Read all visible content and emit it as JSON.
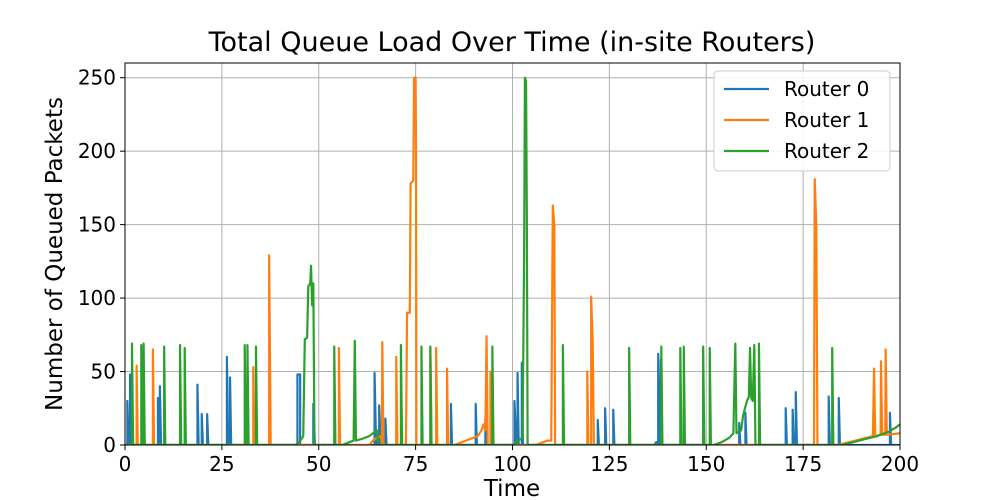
{
  "chart_data": {
    "type": "line",
    "title": "Total Queue Load Over Time (in-site Routers)",
    "xlabel": "Time",
    "ylabel": "Number of Queued Packets",
    "xlim": [
      0,
      200
    ],
    "ylim": [
      0,
      260
    ],
    "xticks": [
      0,
      25,
      50,
      75,
      100,
      125,
      150,
      175,
      200
    ],
    "yticks": [
      0,
      50,
      100,
      150,
      200,
      250
    ],
    "grid": true,
    "legend_position": "top-right",
    "series": [
      {
        "name": "Router 0",
        "color": "#1f77b4",
        "points": [
          [
            0,
            0
          ],
          [
            0.6,
            0
          ],
          [
            0.6,
            30
          ],
          [
            0.9,
            0
          ],
          [
            1.3,
            0
          ],
          [
            1.3,
            48
          ],
          [
            1.6,
            0
          ],
          [
            8.5,
            0
          ],
          [
            8.5,
            32
          ],
          [
            8.8,
            0
          ],
          [
            9,
            0
          ],
          [
            9,
            40
          ],
          [
            9.3,
            0
          ],
          [
            18.7,
            0
          ],
          [
            18.7,
            41
          ],
          [
            19,
            0
          ],
          [
            19.8,
            0
          ],
          [
            19.8,
            21
          ],
          [
            20.1,
            0
          ],
          [
            21.2,
            0
          ],
          [
            21.2,
            21
          ],
          [
            21.5,
            0
          ],
          [
            26.3,
            0
          ],
          [
            26.3,
            60
          ],
          [
            26.6,
            0
          ],
          [
            27.1,
            0
          ],
          [
            27.1,
            46
          ],
          [
            27.4,
            0
          ],
          [
            44.5,
            0
          ],
          [
            44.5,
            48
          ],
          [
            45.2,
            48
          ],
          [
            45.2,
            0
          ],
          [
            48.6,
            0
          ],
          [
            48.6,
            28
          ],
          [
            49,
            0
          ],
          [
            64.4,
            0
          ],
          [
            64.4,
            49
          ],
          [
            64.8,
            0
          ],
          [
            65.6,
            0
          ],
          [
            65.6,
            27
          ],
          [
            66,
            0
          ],
          [
            67.2,
            0
          ],
          [
            67.2,
            18
          ],
          [
            67.5,
            0
          ],
          [
            84.1,
            0
          ],
          [
            84.1,
            28
          ],
          [
            84.4,
            0
          ],
          [
            90.5,
            0
          ],
          [
            90.5,
            28
          ],
          [
            90.8,
            0
          ],
          [
            93,
            0
          ],
          [
            93,
            18
          ],
          [
            93.3,
            0
          ],
          [
            100.5,
            0
          ],
          [
            100.5,
            30
          ],
          [
            101,
            0
          ],
          [
            101.3,
            0
          ],
          [
            101.3,
            49
          ],
          [
            101.6,
            0
          ],
          [
            102.4,
            0
          ],
          [
            102.4,
            56
          ],
          [
            102.7,
            0
          ],
          [
            122,
            0
          ],
          [
            122,
            17
          ],
          [
            122.3,
            0
          ],
          [
            123.9,
            0
          ],
          [
            123.9,
            25
          ],
          [
            124.2,
            0
          ],
          [
            126,
            0
          ],
          [
            126,
            24
          ],
          [
            126.3,
            0
          ],
          [
            136.6,
            0
          ],
          [
            137.1,
            2
          ],
          [
            137.6,
            0
          ],
          [
            137.6,
            62
          ],
          [
            138,
            0
          ],
          [
            138.3,
            0
          ],
          [
            138.3,
            58
          ],
          [
            138.6,
            0
          ],
          [
            158.5,
            0
          ],
          [
            158.5,
            15
          ],
          [
            158.8,
            0
          ],
          [
            160.1,
            0
          ],
          [
            160.1,
            22
          ],
          [
            160.4,
            0
          ],
          [
            170.5,
            0
          ],
          [
            170.5,
            25
          ],
          [
            170.8,
            0
          ],
          [
            172.3,
            0
          ],
          [
            172.3,
            24
          ],
          [
            172.6,
            0
          ],
          [
            173.1,
            0
          ],
          [
            173.1,
            36
          ],
          [
            173.4,
            0
          ],
          [
            181.6,
            0
          ],
          [
            181.6,
            33
          ],
          [
            181.9,
            0
          ],
          [
            184.2,
            0
          ],
          [
            184.2,
            32
          ],
          [
            184.5,
            0
          ],
          [
            197.4,
            0
          ],
          [
            197.4,
            22
          ],
          [
            197.7,
            0
          ],
          [
            200,
            0
          ]
        ]
      },
      {
        "name": "Router 1",
        "color": "#ff7f0e",
        "points": [
          [
            0,
            0
          ],
          [
            3,
            0
          ],
          [
            3,
            54
          ],
          [
            3.3,
            0
          ],
          [
            7.2,
            0
          ],
          [
            7.2,
            65
          ],
          [
            7.5,
            0
          ],
          [
            33.1,
            0
          ],
          [
            33.1,
            53
          ],
          [
            33.4,
            0
          ],
          [
            37.2,
            0
          ],
          [
            37.2,
            129
          ],
          [
            37.6,
            0
          ],
          [
            55.2,
            0
          ],
          [
            55.2,
            66
          ],
          [
            55.5,
            0
          ],
          [
            63,
            0
          ],
          [
            64,
            3
          ],
          [
            65,
            5
          ],
          [
            66,
            6
          ],
          [
            66.3,
            0
          ],
          [
            66.4,
            70
          ],
          [
            66.7,
            0
          ],
          [
            70,
            0
          ],
          [
            70,
            60
          ],
          [
            70.3,
            0
          ],
          [
            72.5,
            0
          ],
          [
            72.8,
            90
          ],
          [
            73.5,
            90
          ],
          [
            73.7,
            178
          ],
          [
            74.4,
            180
          ],
          [
            74.6,
            250
          ],
          [
            75,
            250
          ],
          [
            75.1,
            200
          ],
          [
            75.2,
            0
          ],
          [
            78.8,
            0
          ],
          [
            78.8,
            66
          ],
          [
            79.1,
            0
          ],
          [
            80.3,
            0
          ],
          [
            80.3,
            66
          ],
          [
            80.6,
            0
          ],
          [
            83.1,
            0
          ],
          [
            83.1,
            52
          ],
          [
            83.4,
            0
          ],
          [
            85,
            0
          ],
          [
            87,
            2
          ],
          [
            89,
            4
          ],
          [
            91,
            6
          ],
          [
            92,
            10
          ],
          [
            92.5,
            14
          ],
          [
            93,
            10
          ],
          [
            93.3,
            74
          ],
          [
            93.6,
            0
          ],
          [
            94.3,
            0
          ],
          [
            94.3,
            50
          ],
          [
            94.6,
            0
          ],
          [
            103,
            0
          ],
          [
            106,
            0
          ],
          [
            107,
            1
          ],
          [
            108,
            2
          ],
          [
            109,
            3
          ],
          [
            110,
            3
          ],
          [
            110.4,
            163
          ],
          [
            110.8,
            150
          ],
          [
            111,
            0
          ],
          [
            119.3,
            0
          ],
          [
            119.3,
            50
          ],
          [
            119.6,
            0
          ],
          [
            120.3,
            0
          ],
          [
            120.3,
            101
          ],
          [
            120.7,
            70
          ],
          [
            121,
            0
          ],
          [
            177,
            0
          ],
          [
            177.8,
            0
          ],
          [
            178,
            181
          ],
          [
            178.4,
            150
          ],
          [
            178.7,
            0
          ],
          [
            184,
            0
          ],
          [
            187,
            2
          ],
          [
            190,
            4
          ],
          [
            193,
            6
          ],
          [
            193.3,
            52
          ],
          [
            193.6,
            6
          ],
          [
            195,
            7
          ],
          [
            195.1,
            57
          ],
          [
            195.4,
            7
          ],
          [
            196.2,
            7
          ],
          [
            196.3,
            65
          ],
          [
            196.6,
            7
          ],
          [
            197,
            7
          ],
          [
            200,
            8
          ]
        ]
      },
      {
        "name": "Router 2",
        "color": "#2ca02c",
        "points": [
          [
            0,
            0
          ],
          [
            1.8,
            0
          ],
          [
            1.8,
            69
          ],
          [
            2.1,
            0
          ],
          [
            4.2,
            0
          ],
          [
            4.2,
            68
          ],
          [
            4.5,
            0
          ],
          [
            4.8,
            0
          ],
          [
            4.8,
            69
          ],
          [
            5.1,
            0
          ],
          [
            10.1,
            0
          ],
          [
            10.1,
            67
          ],
          [
            10.4,
            0
          ],
          [
            14.2,
            0
          ],
          [
            14.2,
            68
          ],
          [
            14.5,
            0
          ],
          [
            15.4,
            0
          ],
          [
            15.4,
            66
          ],
          [
            15.7,
            0
          ],
          [
            30.9,
            0
          ],
          [
            30.9,
            68
          ],
          [
            31.2,
            0
          ],
          [
            31.6,
            0
          ],
          [
            31.6,
            68
          ],
          [
            31.9,
            0
          ],
          [
            33.8,
            0
          ],
          [
            33.8,
            67
          ],
          [
            34.1,
            0
          ],
          [
            43,
            0
          ],
          [
            44,
            0
          ],
          [
            45,
            2
          ],
          [
            46,
            6
          ],
          [
            46.4,
            72
          ],
          [
            47,
            73
          ],
          [
            47.3,
            108
          ],
          [
            47.8,
            110
          ],
          [
            48,
            122
          ],
          [
            48.3,
            95
          ],
          [
            48.6,
            110
          ],
          [
            48.9,
            0
          ],
          [
            54,
            0
          ],
          [
            54,
            67
          ],
          [
            54.3,
            0
          ],
          [
            56,
            0
          ],
          [
            57,
            1
          ],
          [
            58,
            2
          ],
          [
            59,
            3
          ],
          [
            59.3,
            71
          ],
          [
            59.6,
            3
          ],
          [
            61,
            4
          ],
          [
            63,
            6
          ],
          [
            64,
            8
          ],
          [
            65,
            10
          ],
          [
            65.3,
            0
          ],
          [
            71.2,
            0
          ],
          [
            71.2,
            68
          ],
          [
            71.5,
            0
          ],
          [
            76.5,
            0
          ],
          [
            76.5,
            67
          ],
          [
            76.8,
            0
          ],
          [
            78.8,
            0
          ],
          [
            78.8,
            67
          ],
          [
            79.1,
            0
          ],
          [
            94.8,
            0
          ],
          [
            94.8,
            67
          ],
          [
            95.1,
            0
          ],
          [
            99,
            0
          ],
          [
            100,
            0
          ],
          [
            101,
            2
          ],
          [
            102,
            4
          ],
          [
            102.6,
            5
          ],
          [
            103,
            130
          ],
          [
            103.2,
            250
          ],
          [
            103.5,
            248
          ],
          [
            103.7,
            155
          ],
          [
            103.9,
            0
          ],
          [
            113,
            0
          ],
          [
            113,
            68
          ],
          [
            113.3,
            0
          ],
          [
            130.1,
            0
          ],
          [
            130.1,
            66
          ],
          [
            130.4,
            0
          ],
          [
            138.4,
            0
          ],
          [
            138.4,
            67
          ],
          [
            138.7,
            0
          ],
          [
            143.3,
            0
          ],
          [
            143.3,
            66
          ],
          [
            143.6,
            0
          ],
          [
            144.2,
            0
          ],
          [
            144.2,
            67
          ],
          [
            144.5,
            0
          ],
          [
            149.2,
            0
          ],
          [
            149.2,
            67
          ],
          [
            149.5,
            0
          ],
          [
            150.9,
            0
          ],
          [
            150.9,
            66
          ],
          [
            151.2,
            0
          ],
          [
            152,
            0
          ],
          [
            154,
            2
          ],
          [
            156,
            5
          ],
          [
            157,
            8
          ],
          [
            157.5,
            69
          ],
          [
            157.8,
            8
          ],
          [
            159,
            10
          ],
          [
            159.5,
            20
          ],
          [
            160,
            25
          ],
          [
            160.5,
            30
          ],
          [
            161,
            33
          ],
          [
            161.3,
            66
          ],
          [
            161.6,
            32
          ],
          [
            162,
            30
          ],
          [
            162.4,
            68
          ],
          [
            162.7,
            0
          ],
          [
            163.6,
            0
          ],
          [
            163.6,
            69
          ],
          [
            163.9,
            0
          ],
          [
            182.5,
            0
          ],
          [
            182.5,
            66
          ],
          [
            182.8,
            0
          ],
          [
            185,
            0
          ],
          [
            188,
            2
          ],
          [
            191,
            4
          ],
          [
            194,
            6
          ],
          [
            197,
            9
          ],
          [
            199,
            12
          ],
          [
            200,
            14
          ]
        ]
      }
    ]
  }
}
